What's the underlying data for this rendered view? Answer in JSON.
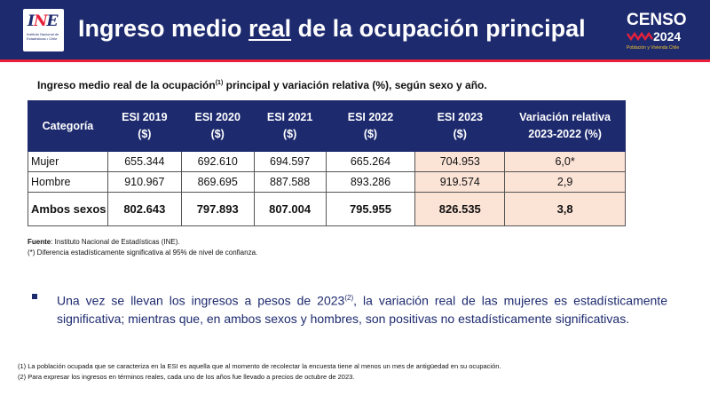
{
  "header": {
    "logo_text_a": "I",
    "logo_text_b": "N",
    "logo_text_c": "E",
    "logo_subtitle": "Instituto Nacional de Estadísticas • Chile",
    "title_before": "Ingreso medio ",
    "title_underlined": "real",
    "title_after": " de la ocupación principal",
    "censo_word": "CENSO",
    "censo_year": "2024",
    "censo_subtitle": "Población y Vivienda Chile",
    "colors": {
      "navy": "#1d2a6e",
      "red": "#e8203a",
      "yellow": "#f2c230",
      "highlight": "#fbe3d6"
    }
  },
  "subtitle": {
    "before": "Ingreso medio real de la ocupación",
    "sup": "(1)",
    "after": " principal y variación relativa (%), según sexo y año."
  },
  "table": {
    "headers": [
      {
        "line1": "Categoría",
        "line2": ""
      },
      {
        "line1": "ESI 2019",
        "line2": "($)"
      },
      {
        "line1": "ESI 2020",
        "line2": "($)"
      },
      {
        "line1": "ESI 2021",
        "line2": "($)"
      },
      {
        "line1": "ESI 2022",
        "line2": "($)"
      },
      {
        "line1": "ESI 2023",
        "line2": "($)"
      },
      {
        "line1": "Variación relativa",
        "line2": "2023-2022 (%)"
      }
    ],
    "rows": [
      {
        "categoria": "Mujer",
        "esi2019": "655.344",
        "esi2020": "692.610",
        "esi2021": "694.597",
        "esi2022": "665.264",
        "esi2023": "704.953",
        "variacion": "6,0*"
      },
      {
        "categoria": "Hombre",
        "esi2019": "910.967",
        "esi2020": "869.695",
        "esi2021": "887.588",
        "esi2022": "893.286",
        "esi2023": "919.574",
        "variacion": "2,9"
      },
      {
        "categoria": "Ambos sexos",
        "esi2019": "802.643",
        "esi2020": "797.893",
        "esi2021": "807.004",
        "esi2022": "795.955",
        "esi2023": "826.535",
        "variacion": "3,8"
      }
    ]
  },
  "source": {
    "label": "Fuente",
    "text": ": Instituto Nacional de Estadísticas (INE).",
    "note": "(*) Diferencia estadísticamente significativa al 95% de nivel de confianza."
  },
  "bullet": {
    "before": "Una vez se llevan los ingresos a pesos de 2023",
    "sup": "(2)",
    "after": ", la variación real de las mujeres es estadísticamente significativa; mientras que, en ambos sexos y hombres, son positivas no estadísticamente significativas."
  },
  "footnotes": [
    "(1) La población ocupada que se caracteriza en la ESI es aquella que al momento de recolectar la encuesta tiene al menos un mes de antigüedad en su ocupación.",
    "(2) Para expresar los ingresos en términos reales, cada uno de los años fue llevado a precios de octubre de 2023."
  ]
}
